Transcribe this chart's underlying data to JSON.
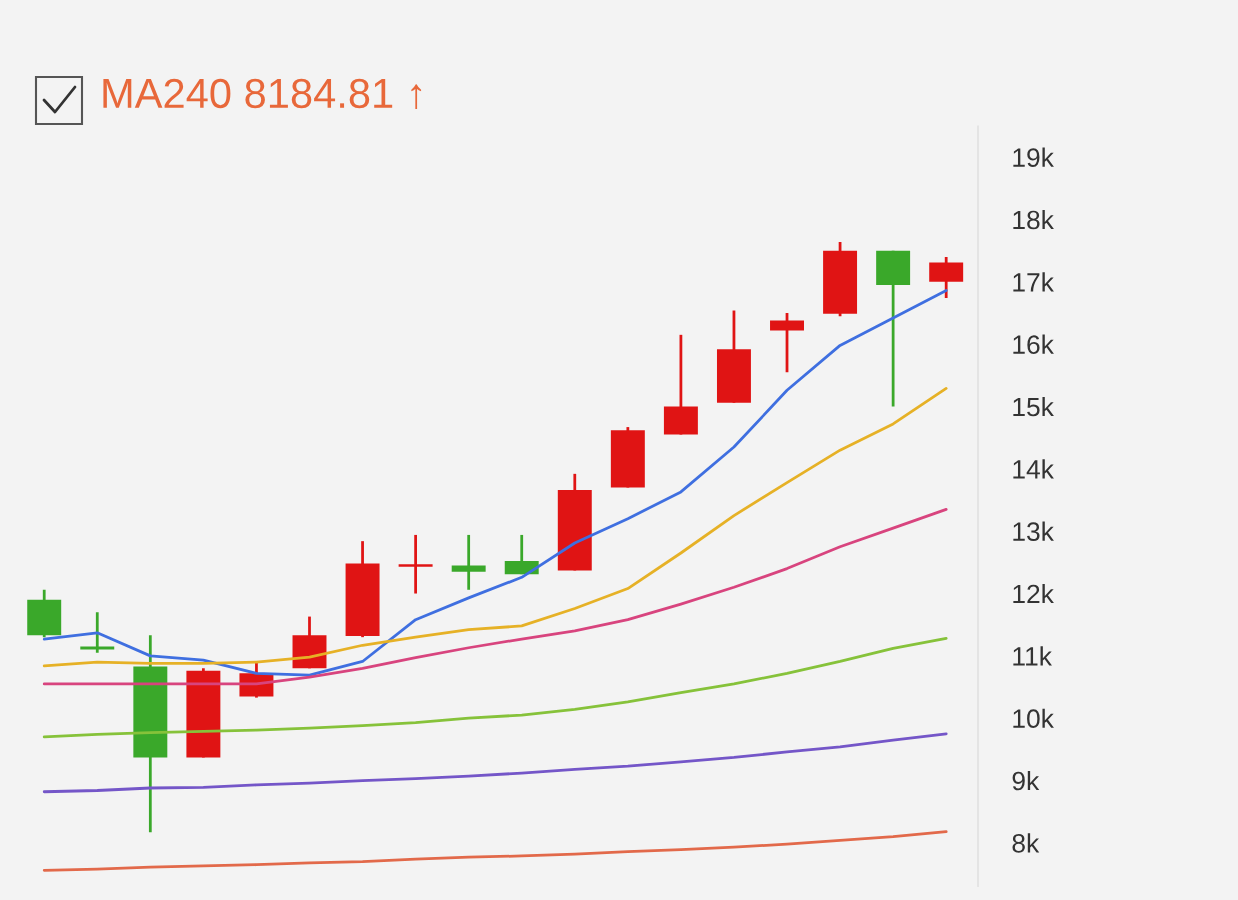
{
  "chart_data": {
    "type": "candlestick",
    "title": "MA240 8184.81 ↑",
    "categories": [
      null,
      null,
      null,
      null,
      null,
      null,
      null,
      null,
      null,
      null,
      null,
      null,
      null,
      null,
      null,
      null,
      null,
      null
    ],
    "ohlc": [
      [
        11900,
        12060,
        11300,
        11330
      ],
      [
        11150,
        11700,
        11050,
        11100
      ],
      [
        10830,
        11330,
        8170,
        9370
      ],
      [
        9370,
        10800,
        9370,
        10760
      ],
      [
        10350,
        10900,
        10330,
        10720
      ],
      [
        10800,
        11630,
        10800,
        11330
      ],
      [
        11320,
        12840,
        11300,
        12480
      ],
      [
        12430,
        12940,
        12000,
        12470
      ],
      [
        12450,
        12940,
        12060,
        12350
      ],
      [
        12520,
        12940,
        12310,
        12310
      ],
      [
        12370,
        13920,
        12370,
        13660
      ],
      [
        13700,
        14670,
        13700,
        14620
      ],
      [
        14550,
        16150,
        14550,
        15000
      ],
      [
        15060,
        16540,
        15060,
        15920
      ],
      [
        16220,
        16500,
        15550,
        16380
      ],
      [
        16490,
        17640,
        16450,
        17500
      ],
      [
        17500,
        17500,
        15000,
        16950
      ],
      [
        17000,
        17400,
        16740,
        17310
      ]
    ],
    "colors": [
      "#3aa82a",
      "#3aa82a",
      "#3aa82a",
      "#e01414",
      "#e01414",
      "#e01414",
      "#e01414",
      "#e01414",
      "#3aa82a",
      "#3aa82a",
      "#e01414",
      "#e01414",
      "#e01414",
      "#e01414",
      "#e01414",
      "#e01414",
      "#3aa82a",
      "#e01414"
    ],
    "series": [
      {
        "type": "line",
        "color": "#3f6fe0",
        "values": [
          11270,
          11370,
          11000,
          10930,
          10720,
          10690,
          10910,
          11580,
          11930,
          12260,
          12810,
          13200,
          13630,
          14350,
          15260,
          15980,
          16420,
          16860
        ]
      },
      {
        "type": "line",
        "color": "#e6b126",
        "values": [
          10840,
          10900,
          10880,
          10880,
          10900,
          10980,
          11170,
          11300,
          11420,
          11480,
          11760,
          12080,
          12650,
          13250,
          13780,
          14300,
          14720,
          15290
        ]
      },
      {
        "type": "line",
        "color": "#d8447e",
        "values": [
          10550,
          10550,
          10550,
          10550,
          10550,
          10660,
          10800,
          10970,
          11130,
          11270,
          11400,
          11580,
          11830,
          12100,
          12400,
          12750,
          13050,
          13350
        ]
      },
      {
        "type": "line",
        "color": "#86c23a",
        "values": [
          9700,
          9740,
          9770,
          9790,
          9810,
          9840,
          9880,
          9930,
          10000,
          10050,
          10140,
          10260,
          10410,
          10550,
          10720,
          10910,
          11120,
          11280
        ]
      },
      {
        "type": "line",
        "color": "#7456c8",
        "values": [
          8820,
          8840,
          8880,
          8890,
          8930,
          8960,
          9000,
          9030,
          9070,
          9120,
          9180,
          9230,
          9300,
          9370,
          9460,
          9540,
          9650,
          9750
        ]
      },
      {
        "type": "line",
        "color": "#e2694a",
        "values": [
          7560,
          7580,
          7610,
          7630,
          7650,
          7680,
          7700,
          7740,
          7770,
          7790,
          7820,
          7860,
          7890,
          7930,
          7980,
          8040,
          8100,
          8180
        ]
      }
    ],
    "ylim": [
      7300,
      19500
    ],
    "yticks": [
      {
        "value": 8000,
        "label": "8k"
      },
      {
        "value": 9000,
        "label": "9k"
      },
      {
        "value": 10000,
        "label": "10k"
      },
      {
        "value": 11000,
        "label": "11k"
      },
      {
        "value": 12000,
        "label": "12k"
      },
      {
        "value": 13000,
        "label": "13k"
      },
      {
        "value": 14000,
        "label": "14k"
      },
      {
        "value": 15000,
        "label": "15k"
      },
      {
        "value": 16000,
        "label": "16k"
      },
      {
        "value": 17000,
        "label": "17k"
      },
      {
        "value": 18000,
        "label": "18k"
      },
      {
        "value": 19000,
        "label": "19k"
      }
    ],
    "tick_labels": "y",
    "grid": false
  }
}
